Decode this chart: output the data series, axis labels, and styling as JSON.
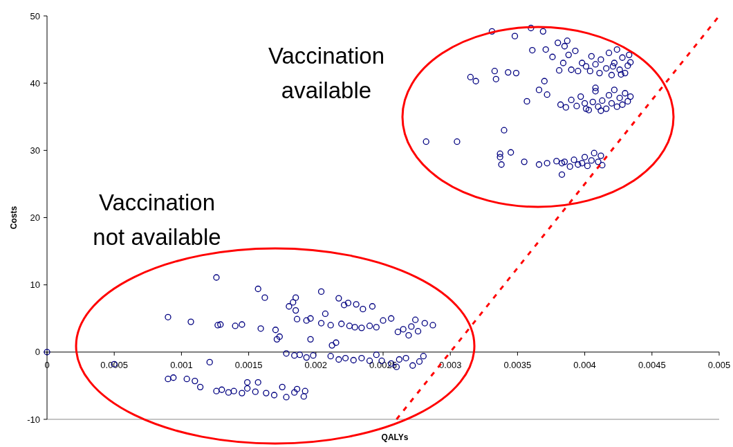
{
  "chart_data": {
    "type": "scatter",
    "xlabel": "QALYs",
    "ylabel": "Costs",
    "xlim": [
      0,
      0.005
    ],
    "xticks": [
      0,
      0.0005,
      0.001,
      0.0015,
      0.002,
      0.0025,
      0.003,
      0.0035,
      0.004,
      0.0045,
      0.005
    ],
    "ylim": [
      -10,
      50
    ],
    "yticks": [
      -10,
      0,
      10,
      20,
      30,
      40,
      50
    ],
    "grid": false,
    "marker": "circle",
    "annotations": [
      "Vaccination available",
      "Vaccination not available"
    ],
    "series": [
      {
        "color": "#000080",
        "x": [
          0,
          0.0005,
          0.0009,
          0.00107,
          0.00121,
          0.00126,
          0.00127,
          0.00129,
          0.0014,
          0.00145,
          0.00157,
          0.00162,
          0.00159,
          0.0017,
          0.00171,
          0.00173,
          0.0009,
          0.00094,
          0.00104,
          0.0011,
          0.00114,
          0.00126,
          0.0013,
          0.00135,
          0.00139,
          0.00145,
          0.00149,
          0.00155,
          0.00149,
          0.00157,
          0.00163,
          0.00169,
          0.00175,
          0.00178,
          0.00184,
          0.00186,
          0.00191,
          0.00192,
          0.0018,
          0.00183,
          0.00185,
          0.00185,
          0.00186,
          0.00193,
          0.00196,
          0.00178,
          0.00184,
          0.00188,
          0.00193,
          0.00198,
          0.00196,
          0.00204,
          0.00207,
          0.00204,
          0.00211,
          0.00217,
          0.00221,
          0.00224,
          0.0023,
          0.00235,
          0.00242,
          0.00219,
          0.00225,
          0.00229,
          0.00234,
          0.0024,
          0.00245,
          0.0025,
          0.00256,
          0.00261,
          0.00265,
          0.00271,
          0.00276,
          0.00281,
          0.00287,
          0.00274,
          0.00269,
          0.00212,
          0.00215,
          0.00211,
          0.00217,
          0.00222,
          0.00228,
          0.00234,
          0.0024,
          0.00245,
          0.00249,
          0.00256,
          0.00262,
          0.00267,
          0.00272,
          0.00277,
          0.0028,
          0.0026,
          0.00331,
          0.00348,
          0.0036,
          0.00369,
          0.00315,
          0.00319,
          0.00333,
          0.00334,
          0.00343,
          0.00349,
          0.00361,
          0.00371,
          0.00376,
          0.0037,
          0.00366,
          0.00372,
          0.00357,
          0.0034,
          0.00282,
          0.00305,
          0.00337,
          0.00337,
          0.00345,
          0.00338,
          0.00355,
          0.00366,
          0.00372,
          0.00379,
          0.00383,
          0.00383,
          0.00385,
          0.00388,
          0.00384,
          0.0039,
          0.00395,
          0.00398,
          0.00401,
          0.00405,
          0.00404,
          0.00408,
          0.00412,
          0.00411,
          0.00416,
          0.00418,
          0.0042,
          0.00422,
          0.00424,
          0.00426,
          0.00428,
          0.0043,
          0.00432,
          0.00433,
          0.00434,
          0.00381,
          0.00393,
          0.00427,
          0.00421,
          0.00387,
          0.0038,
          0.00382,
          0.00386,
          0.0039,
          0.00394,
          0.00397,
          0.004,
          0.00403,
          0.00406,
          0.00408,
          0.0041,
          0.00413,
          0.00416,
          0.00418,
          0.0042,
          0.00422,
          0.00424,
          0.00426,
          0.00428,
          0.0043,
          0.00432,
          0.00434,
          0.00408,
          0.00401,
          0.00412,
          0.00385,
          0.00389,
          0.00392,
          0.00395,
          0.00398,
          0.004,
          0.00402,
          0.00405,
          0.00407,
          0.0041,
          0.00412,
          0.00413
        ],
        "values": [
          0,
          -1.8,
          5.2,
          4.5,
          -1.5,
          11.1,
          4,
          4.1,
          3.9,
          4.1,
          9.4,
          8.1,
          3.5,
          3.3,
          1.9,
          2.3,
          -4,
          -3.8,
          -4,
          -4.3,
          -5.2,
          -5.8,
          -5.6,
          -6,
          -5.8,
          -6.1,
          -5.4,
          -5.9,
          -4.5,
          -4.5,
          -6.1,
          -6.4,
          -5.2,
          -6.7,
          -6,
          -5.5,
          -6.6,
          -5.8,
          6.8,
          7.4,
          8.1,
          6.2,
          4.9,
          4.7,
          5,
          -0.2,
          -0.5,
          -0.4,
          -0.8,
          -0.5,
          1.9,
          9,
          5.7,
          4.3,
          4,
          8,
          7,
          7.3,
          7.1,
          6.4,
          6.8,
          4.2,
          3.9,
          3.7,
          3.6,
          3.9,
          3.7,
          4.7,
          5,
          3,
          3.4,
          3.8,
          3.1,
          4.3,
          4,
          4.8,
          2.5,
          1,
          1.4,
          -0.6,
          -1.1,
          -0.9,
          -1.2,
          -0.9,
          -1.3,
          -0.4,
          -1.3,
          -1.7,
          -1.1,
          -0.9,
          -2,
          -1.4,
          -0.6,
          -2.2,
          47.7,
          47,
          48.2,
          47.7,
          40.9,
          40.3,
          41.8,
          40.6,
          41.6,
          41.5,
          44.9,
          45,
          43.9,
          40.3,
          39,
          38.3,
          37.3,
          33,
          31.3,
          31.3,
          29.5,
          29,
          29.7,
          27.9,
          28.3,
          27.9,
          28.1,
          28.4,
          28.1,
          26.4,
          45.5,
          44.2,
          43,
          42,
          41.8,
          43,
          42.5,
          44,
          41.8,
          42.8,
          43.5,
          41.5,
          42.2,
          44.5,
          41.2,
          43,
          45,
          42,
          43.8,
          41.5,
          42.6,
          44.2,
          43.1,
          41.9,
          44.8,
          41.3,
          42.5,
          46.3,
          46,
          36.8,
          36.4,
          37.5,
          36.6,
          38,
          37,
          36,
          37.2,
          38.8,
          36.5,
          37.4,
          36.2,
          38.2,
          37,
          39,
          36.5,
          37.8,
          36.8,
          38.5,
          37.3,
          38,
          39.3,
          36.2,
          35.9,
          28.3,
          27.6,
          28.6,
          27.9,
          28.1,
          29,
          27.7,
          28.5,
          29.6,
          28.3,
          29.2,
          27.8
        ]
      },
      {
        "type": "line",
        "color": "#ff0000",
        "line_style": "dashed",
        "marker": "none",
        "x": [
          0.0026,
          0.005
        ],
        "values": [
          -10,
          50
        ]
      }
    ]
  }
}
